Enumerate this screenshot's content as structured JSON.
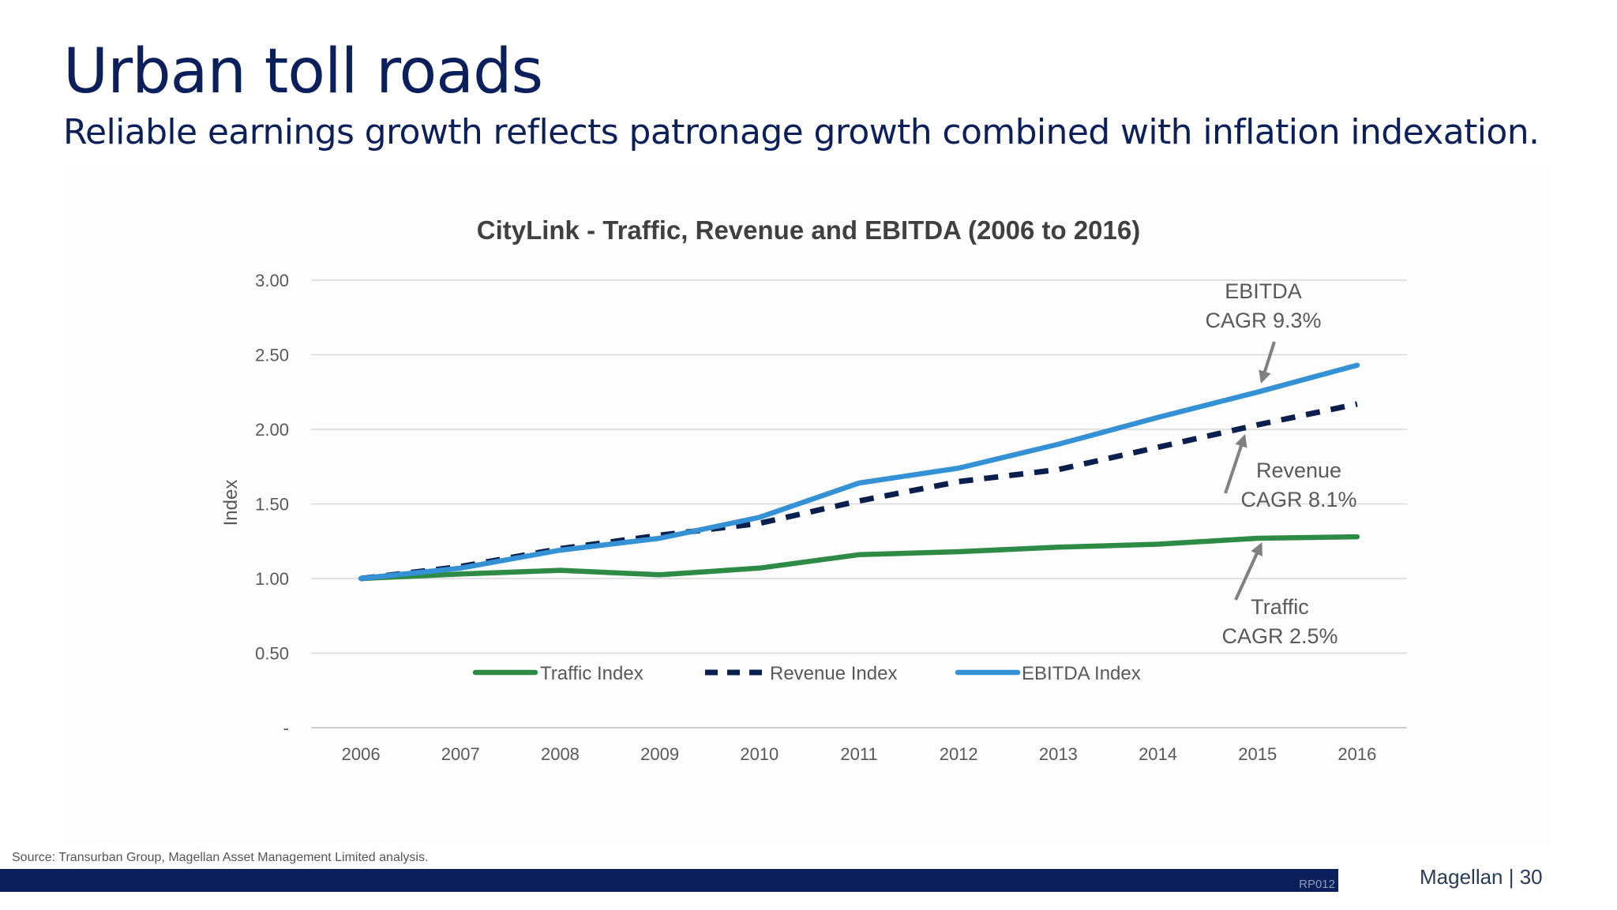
{
  "slide": {
    "title": "Urban toll roads",
    "subtitle": "Reliable earnings growth reflects patronage growth combined with inflation indexation.",
    "source": "Source: Transurban Group, Magellan Asset Management Limited analysis.",
    "footer_code": "RP012",
    "footer_brand": "Magellan | 30"
  },
  "chart_data": {
    "type": "line",
    "title": "CityLink - Traffic, Revenue and EBITDA (2006 to 2016)",
    "xlabel": "",
    "ylabel": "Index",
    "x": [
      "2006",
      "2007",
      "2008",
      "2009",
      "2010",
      "2011",
      "2012",
      "2013",
      "2014",
      "2015",
      "2016"
    ],
    "ylim": [
      0,
      3
    ],
    "yticks": [
      0,
      0.5,
      1,
      1.5,
      2,
      2.5,
      3
    ],
    "ytick_labels": [
      "-",
      "0.50",
      "1.00",
      "1.50",
      "2.00",
      "2.50",
      "3.00"
    ],
    "grid": true,
    "legend_position": "inside-bottom",
    "series": [
      {
        "name": "Traffic Index",
        "color": "#2e8b45",
        "style": "solid",
        "values": [
          1.0,
          1.03,
          1.055,
          1.025,
          1.07,
          1.16,
          1.18,
          1.21,
          1.23,
          1.27,
          1.28
        ]
      },
      {
        "name": "Revenue Index",
        "color": "#0b1f4f",
        "style": "dashed",
        "values": [
          1.0,
          1.08,
          1.2,
          1.29,
          1.37,
          1.52,
          1.65,
          1.73,
          1.88,
          2.03,
          2.17
        ]
      },
      {
        "name": "EBITDA Index",
        "color": "#3591d6",
        "style": "solid",
        "values": [
          1.0,
          1.07,
          1.19,
          1.27,
          1.41,
          1.64,
          1.74,
          1.9,
          2.08,
          2.25,
          2.43
        ]
      }
    ],
    "annotations": [
      {
        "line1": "EBITDA",
        "line2": "CAGR 9.3%",
        "series": "EBITDA Index",
        "x": "2015"
      },
      {
        "line1": "Revenue",
        "line2": "CAGR 8.1%",
        "series": "Revenue Index",
        "x": "2015"
      },
      {
        "line1": "Traffic",
        "line2": "CAGR 2.5%",
        "series": "Traffic Index",
        "x": "2015"
      }
    ]
  }
}
